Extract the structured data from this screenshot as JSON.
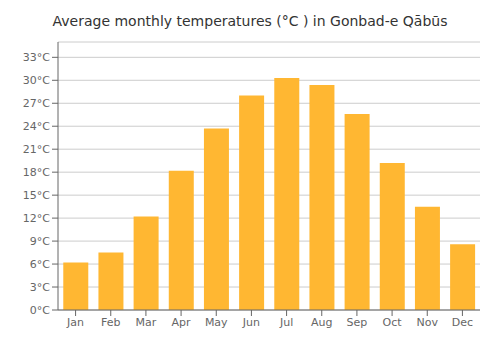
{
  "chart_data": {
    "type": "bar",
    "title": "Average monthly temperatures (°C ) in Gonbad-e Qābūs",
    "categories": [
      "Jan",
      "Feb",
      "Mar",
      "Apr",
      "May",
      "Jun",
      "Jul",
      "Aug",
      "Sep",
      "Oct",
      "Nov",
      "Dec"
    ],
    "values": [
      6.2,
      7.5,
      12.2,
      18.2,
      23.7,
      28.0,
      30.3,
      29.4,
      25.6,
      19.2,
      13.5,
      8.6
    ],
    "color": "#FFB732",
    "ylim": [
      0,
      35
    ],
    "yticks": [
      {
        "value": 0,
        "label": "0°C"
      },
      {
        "value": 3,
        "label": "3°C"
      },
      {
        "value": 6,
        "label": "6°C"
      },
      {
        "value": 9,
        "label": "9°C"
      },
      {
        "value": 12,
        "label": "12°C"
      },
      {
        "value": 15,
        "label": "15°C"
      },
      {
        "value": 18,
        "label": "18°C"
      },
      {
        "value": 21,
        "label": "21°C"
      },
      {
        "value": 24,
        "label": "24°C"
      },
      {
        "value": 27,
        "label": "27°C"
      },
      {
        "value": 30,
        "label": "30°C"
      },
      {
        "value": 33,
        "label": "33°C"
      }
    ],
    "grid": true
  }
}
